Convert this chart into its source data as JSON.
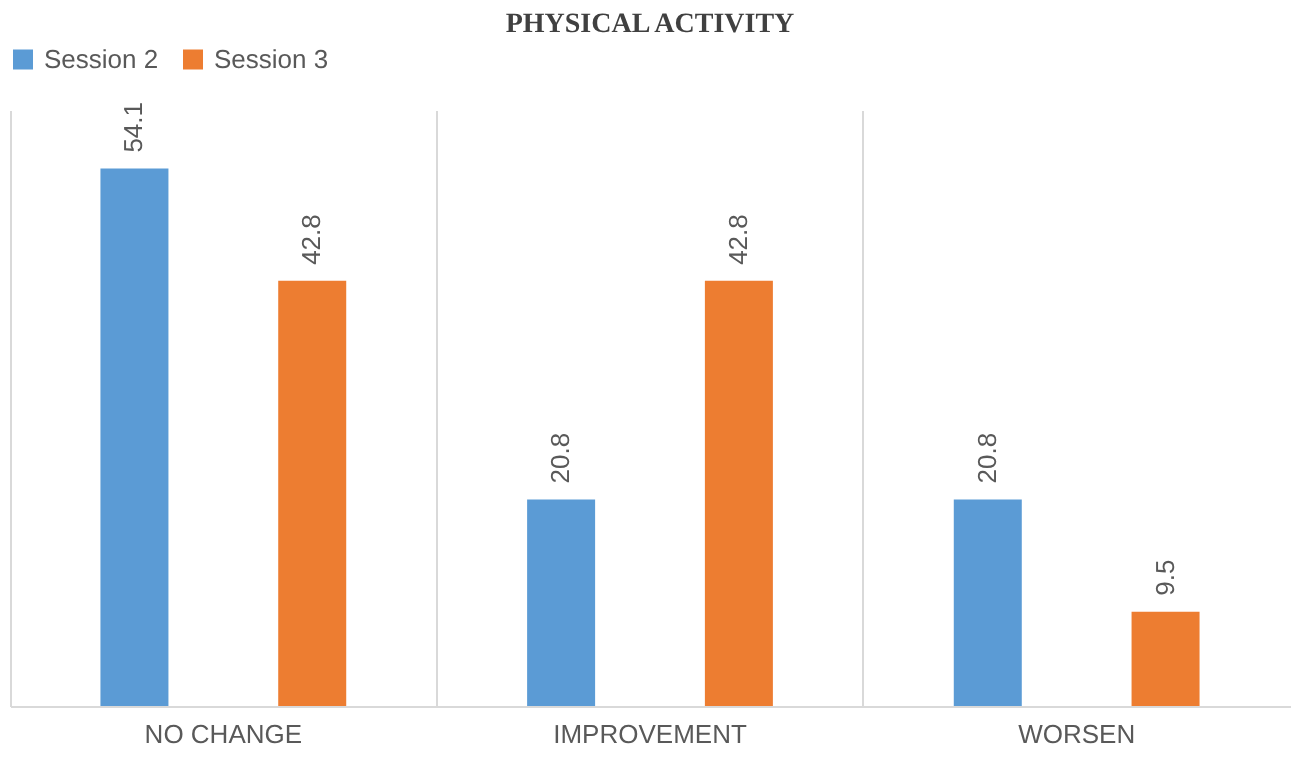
{
  "chart_data": {
    "type": "bar",
    "title": "PHYSICAL ACTIVITY",
    "categories": [
      "NO  CHANGE",
      "IMPROVEMENT",
      "WORSEN"
    ],
    "series": [
      {
        "name": "Session 2",
        "color": "#5b9bd5",
        "values": [
          54.1,
          20.8,
          20.8
        ]
      },
      {
        "name": "Session 3",
        "color": "#ed7d31",
        "values": [
          42.8,
          42.8,
          9.5
        ]
      }
    ],
    "ylim": [
      0,
      60
    ],
    "data_labels": true,
    "grid": "x",
    "legend": "top"
  }
}
